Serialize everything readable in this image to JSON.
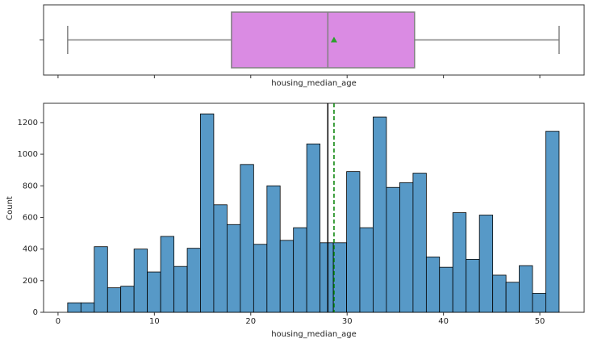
{
  "chart_data": [
    {
      "type": "box",
      "xlabel": "housing_median_age",
      "color": "#da8be3",
      "line_color": "#808080",
      "mean_color": "#2ca02c",
      "min": 1,
      "q1": 18,
      "median": 28,
      "q3": 37,
      "max": 52,
      "mean": 28.64,
      "xlim": [
        -1.5,
        54.6
      ]
    },
    {
      "type": "histogram",
      "xlabel": "housing_median_age",
      "ylabel": "Count",
      "color": "#5799c7",
      "bins": [
        1,
        2.38,
        3.76,
        5.14,
        6.51,
        7.89,
        9.27,
        10.65,
        12.03,
        13.41,
        14.78,
        16.16,
        17.54,
        18.92,
        20.3,
        21.68,
        23.05,
        24.43,
        25.81,
        27.19,
        28.57,
        29.95,
        31.32,
        32.7,
        34.08,
        35.46,
        36.84,
        38.22,
        39.59,
        40.97,
        42.35,
        43.73,
        45.11,
        46.49,
        47.86,
        49.24,
        50.62,
        52
      ],
      "values": [
        60,
        60,
        415,
        155,
        165,
        400,
        255,
        480,
        290,
        405,
        1255,
        680,
        555,
        935,
        430,
        800,
        455,
        535,
        1065,
        440,
        440,
        890,
        535,
        1235,
        790,
        820,
        880,
        350,
        285,
        630,
        335,
        615,
        235,
        190,
        295,
        120,
        1145
      ],
      "xlim": [
        -1.5,
        54.6
      ],
      "ylim": [
        0,
        1322
      ],
      "xticks": [
        0,
        10,
        20,
        30,
        40,
        50
      ],
      "yticks": [
        0,
        200,
        400,
        600,
        800,
        1000,
        1200
      ],
      "vlines": [
        {
          "value": 28,
          "color": "#000000",
          "style": "solid"
        },
        {
          "value": 28.64,
          "color": "#008000",
          "style": "dashed"
        }
      ]
    }
  ]
}
